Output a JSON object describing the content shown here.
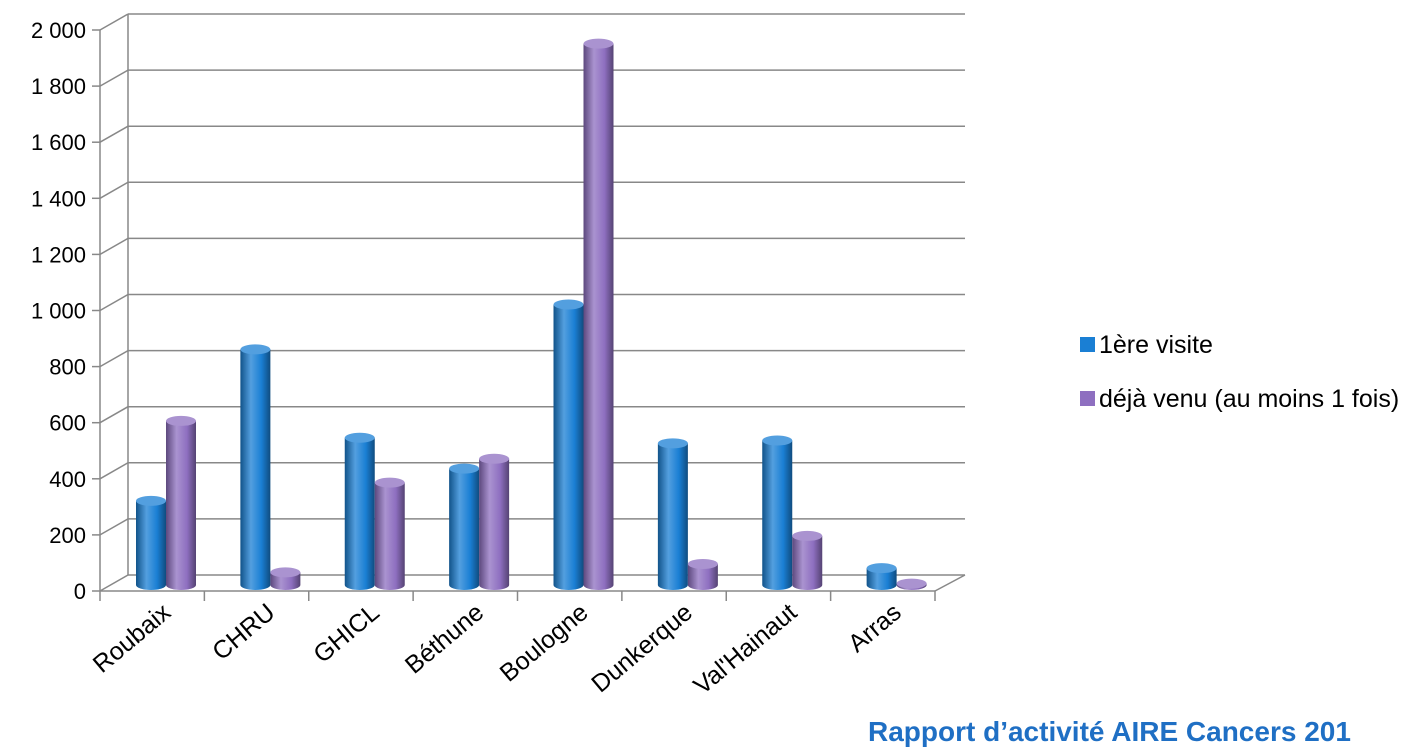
{
  "chart_data": {
    "type": "bar",
    "categories": [
      "Roubaix",
      "CHRU",
      "GHICL",
      "Béthune",
      "Boulogne",
      "Dunkerque",
      "Val'Hainaut",
      "Arras"
    ],
    "series": [
      {
        "name": "1ère visite",
        "color": "#1a7fd4",
        "values": [
          300,
          840,
          525,
          415,
          1000,
          505,
          515,
          60
        ]
      },
      {
        "name": "déjà venu (au moins 1 fois)",
        "color": "#8e6fc0",
        "values": [
          585,
          45,
          365,
          450,
          1930,
          75,
          175,
          5
        ]
      }
    ],
    "ylim": [
      0,
      2000
    ],
    "yticks": [
      0,
      200,
      400,
      600,
      800,
      1000,
      1200,
      1400,
      1600,
      1800,
      2000
    ],
    "ytick_labels": [
      "0",
      "200",
      "400",
      "600",
      "800",
      "1 000",
      "1 200",
      "1 400",
      "1 600",
      "1 800",
      "2 000"
    ],
    "grid": true,
    "legend_position": "right",
    "style": "3d-cylinder"
  },
  "footer": "Rapport d’activité AIRE Cancers 201"
}
